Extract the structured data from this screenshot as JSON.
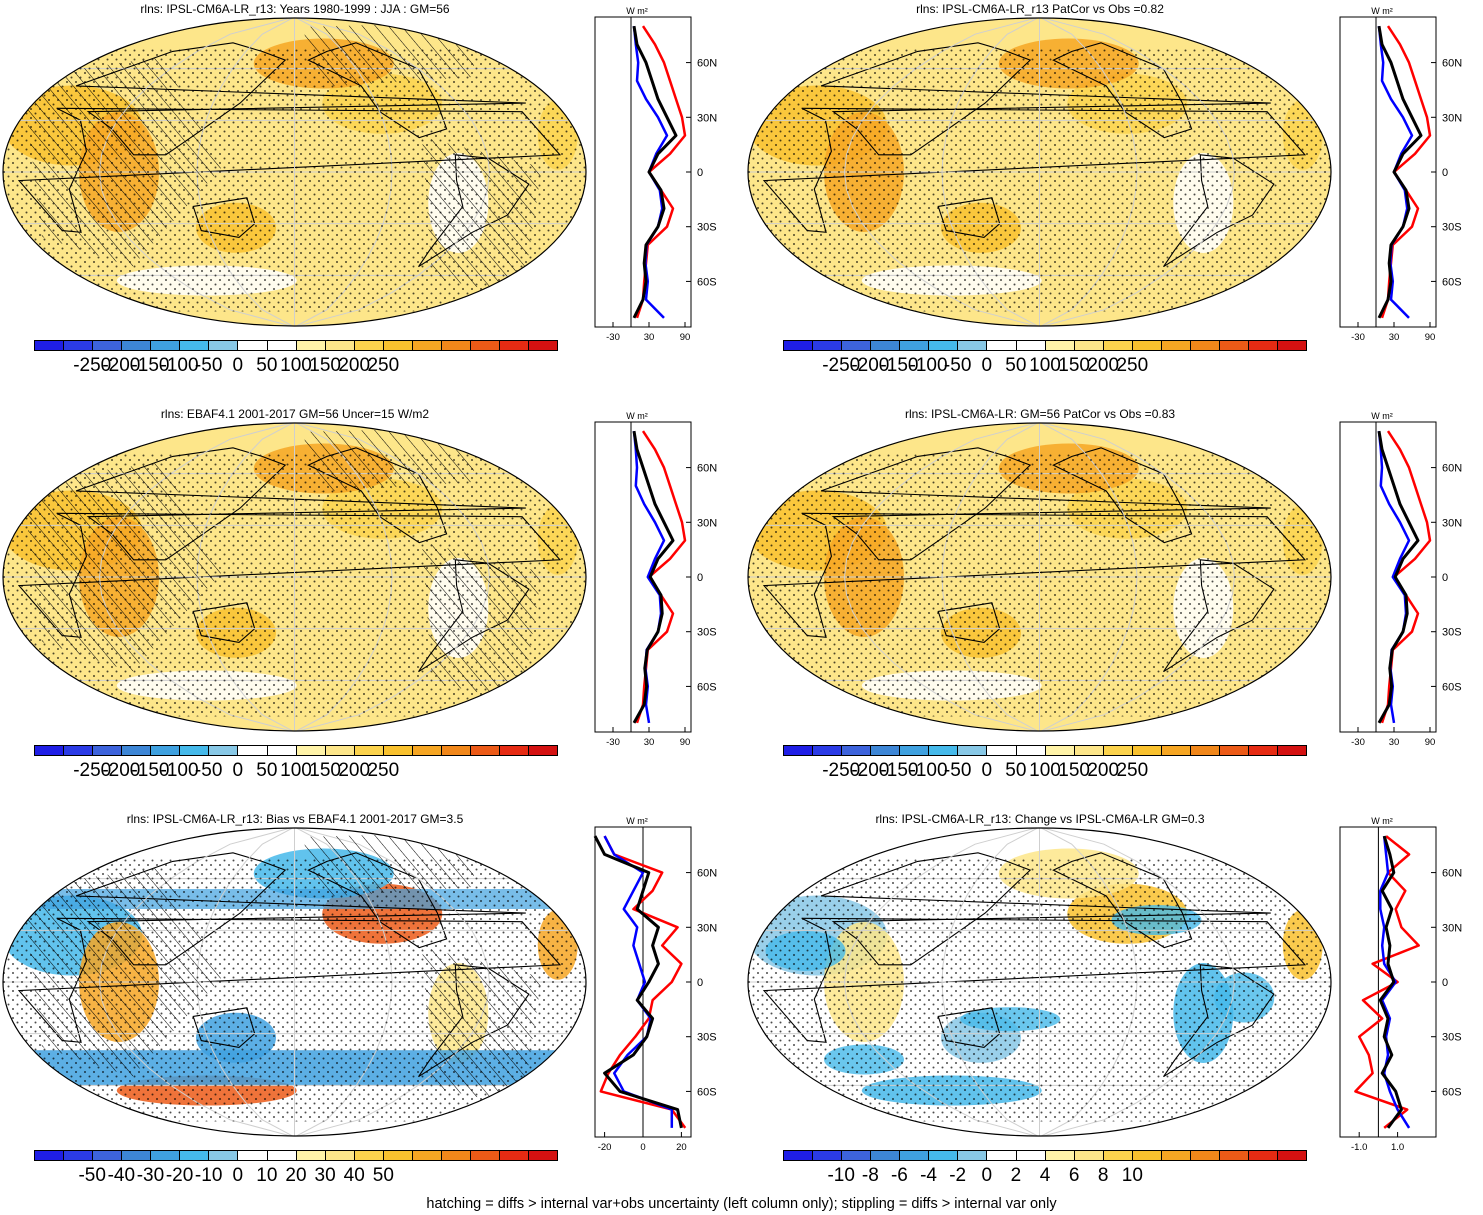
{
  "colors": {
    "flux": [
      "#1f1ee6",
      "#2b3be6",
      "#3d63dc",
      "#3d86d6",
      "#3fa1e0",
      "#45b9ea",
      "#88c8e6",
      "#ffffff",
      "#ffffff",
      "#fff3a8",
      "#fde68a",
      "#fcd34d",
      "#f9c12e",
      "#f6a623",
      "#f1871a",
      "#ec5a17",
      "#e62b13",
      "#d41111"
    ],
    "model": "#000000",
    "obs": "#0000ff",
    "diff": "#ff0000"
  },
  "footer": "hatching = diffs > internal var+obs uncertainty (left column only); stippling = diffs > internal var only",
  "panels": [
    {
      "title": "rlns: IPSL-CM6A-LR_r13: Years 1980-1999 : JJA : GM=56",
      "map_field": "model_climatology",
      "hatching": true,
      "stippling": true,
      "colorbar_labels": [
        "-250",
        "-200",
        "-150",
        "-100",
        "-50",
        "0",
        "50",
        "100",
        "150",
        "200",
        "250"
      ],
      "zonal": {
        "units": "W m²",
        "xticks": [
          "-30",
          "30",
          "90"
        ],
        "xlim": [
          -60,
          100
        ],
        "yticks": [
          "60N",
          "30N",
          "0",
          "30S",
          "60S"
        ],
        "ytick_lats": [
          60,
          30,
          0,
          -30,
          -60
        ],
        "ylabels_side": "none"
      }
    },
    {
      "title": "rlns: IPSL-CM6A-LR_r13 PatCor vs Obs =0.82",
      "map_field": "model_climatology",
      "hatching": false,
      "stippling": true,
      "colorbar_labels": [
        "-250",
        "-200",
        "-150",
        "-100",
        "-50",
        "0",
        "50",
        "100",
        "150",
        "200",
        "250"
      ],
      "zonal": {
        "units": "W m²",
        "xticks": [
          "-30",
          "30",
          "90"
        ],
        "xlim": [
          -60,
          100
        ],
        "yticks": [
          "60N",
          "30N",
          "0",
          "30S",
          "60S"
        ],
        "ytick_lats": [
          60,
          30,
          0,
          -30,
          -60
        ],
        "ylabels_side": "right"
      }
    },
    {
      "title": "rlns: EBAF4.1 2001-2017 GM=56 Uncer=15 W/m2",
      "map_field": "obs_climatology",
      "hatching": true,
      "stippling": true,
      "colorbar_labels": [
        "-250",
        "-200",
        "-150",
        "-100",
        "-50",
        "0",
        "50",
        "100",
        "150",
        "200",
        "250"
      ],
      "zonal": {
        "units": "W m²",
        "xticks": [
          "-30",
          "30",
          "90"
        ],
        "xlim": [
          -60,
          100
        ],
        "yticks": [
          "60N",
          "30N",
          "0",
          "30S",
          "60S"
        ],
        "ytick_lats": [
          60,
          30,
          0,
          -30,
          -60
        ],
        "ylabels_side": "none"
      }
    },
    {
      "title": "rlns: IPSL-CM6A-LR: GM=56 PatCor vs Obs =0.83",
      "map_field": "model_climatology",
      "hatching": false,
      "stippling": true,
      "colorbar_labels": [
        "-250",
        "-200",
        "-150",
        "-100",
        "-50",
        "0",
        "50",
        "100",
        "150",
        "200",
        "250"
      ],
      "zonal": {
        "units": "W m²",
        "xticks": [
          "-30",
          "30",
          "90"
        ],
        "xlim": [
          -60,
          100
        ],
        "yticks": [
          "60N",
          "30N",
          "0",
          "30S",
          "60S"
        ],
        "ytick_lats": [
          60,
          30,
          0,
          -30,
          -60
        ],
        "ylabels_side": "right"
      }
    },
    {
      "title": "rlns: IPSL-CM6A-LR_r13: Bias vs EBAF4.1 2001-2017 GM=3.5",
      "map_field": "bias",
      "hatching": true,
      "stippling": true,
      "colorbar_labels": [
        "-50",
        "-40",
        "-30",
        "-20",
        "-10",
        "0",
        "10",
        "20",
        "30",
        "40",
        "50"
      ],
      "zonal": {
        "units": "W m²",
        "xticks": [
          "-20",
          "0",
          "20"
        ],
        "xlim": [
          -25,
          25
        ],
        "yticks": [
          "60N",
          "30N",
          "0",
          "30S",
          "60S"
        ],
        "ytick_lats": [
          60,
          30,
          0,
          -30,
          -60
        ],
        "ylabels_side": "right"
      }
    },
    {
      "title": "rlns: IPSL-CM6A-LR_r13: Change vs IPSL-CM6A-LR GM=0.3",
      "map_field": "change",
      "hatching": false,
      "stippling": true,
      "colorbar_labels": [
        "-10",
        "-8",
        "-6",
        "-4",
        "-2",
        "0",
        "2",
        "4",
        "6",
        "8",
        "10"
      ],
      "zonal": {
        "units": "W m²",
        "xticks": [
          "-1.0",
          "1.0"
        ],
        "xlim": [
          -2,
          3
        ],
        "yticks": [
          "60N",
          "30N",
          "0",
          "30S",
          "60S"
        ],
        "ytick_lats": [
          60,
          30,
          0,
          -30,
          -60
        ],
        "ylabels_side": "right"
      }
    }
  ],
  "chart_data": {
    "type": "line",
    "description_series": [
      "model",
      "obs",
      "diff"
    ],
    "lat": [
      -80,
      -70,
      -60,
      -50,
      -40,
      -30,
      -20,
      -10,
      0,
      10,
      20,
      30,
      40,
      50,
      60,
      70,
      80
    ],
    "profiles": {
      "clim_model": [
        5,
        20,
        25,
        22,
        25,
        45,
        55,
        50,
        30,
        45,
        75,
        60,
        45,
        35,
        25,
        10,
        5
      ],
      "clim_obs": [
        55,
        25,
        28,
        24,
        26,
        45,
        52,
        48,
        30,
        42,
        60,
        45,
        25,
        10,
        12,
        8,
        5
      ],
      "clim_model2": [
        5,
        22,
        26,
        23,
        27,
        45,
        52,
        50,
        32,
        45,
        70,
        55,
        40,
        30,
        20,
        10,
        5
      ],
      "clim_obs2": [
        30,
        25,
        28,
        24,
        26,
        45,
        50,
        48,
        28,
        40,
        55,
        40,
        22,
        8,
        10,
        8,
        5
      ],
      "clim_diff": [
        10,
        20,
        22,
        25,
        28,
        60,
        70,
        50,
        30,
        65,
        90,
        85,
        75,
        65,
        55,
        40,
        20
      ],
      "bias_model": [
        20,
        18,
        -12,
        -20,
        -5,
        2,
        5,
        -3,
        3,
        8,
        5,
        8,
        -3,
        0,
        3,
        -20,
        -25
      ],
      "bias_obs": [
        15,
        15,
        -10,
        -15,
        -8,
        2,
        4,
        -3,
        1,
        -2,
        -5,
        -3,
        -10,
        -5,
        0,
        -15,
        -20
      ],
      "bias_diff": [
        22,
        15,
        -22,
        -18,
        -12,
        -4,
        3,
        5,
        15,
        20,
        10,
        18,
        -5,
        5,
        10,
        -15,
        -20
      ],
      "chg_model": [
        0.5,
        1.2,
        0.9,
        0.2,
        0.7,
        0.3,
        0.5,
        0.1,
        0.8,
        0.5,
        0.6,
        0.4,
        0.7,
        0.2,
        0.8,
        0.6,
        0.3
      ],
      "chg_obs": [
        1.6,
        1.0,
        0.6,
        0.3,
        0.5,
        0.4,
        0.6,
        0.2,
        0.9,
        0.3,
        0.2,
        0.3,
        0.1,
        0.1,
        0.5,
        0.4,
        0.3
      ],
      "chg_diff": [
        0.3,
        1.5,
        -1.2,
        -0.3,
        -0.5,
        -1.0,
        0.2,
        -0.8,
        1.0,
        -0.3,
        2.1,
        1.2,
        0.9,
        1.4,
        0.5,
        1.6,
        0.4
      ]
    }
  }
}
